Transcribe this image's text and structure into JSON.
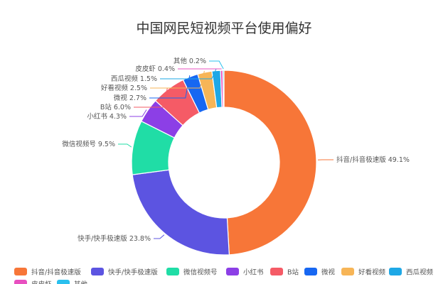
{
  "chart_data": {
    "type": "pie",
    "variant": "donut",
    "title": "中国网民短视频平台使用偏好",
    "slices": [
      {
        "name": "抖音/抖音极速版",
        "value": 49.1,
        "label": "抖音/抖音极速版 49.1%",
        "color": "#F77638"
      },
      {
        "name": "快手/快手极速版",
        "value": 23.8,
        "label": "快手/快手极速版 23.8%",
        "color": "#5C54E1"
      },
      {
        "name": "微信视频号",
        "value": 9.5,
        "label": "微信视频号 9.5%",
        "color": "#20DDA6"
      },
      {
        "name": "小红书",
        "value": 4.3,
        "label": "小红书 4.3%",
        "color": "#8C3FE6"
      },
      {
        "name": "B站",
        "value": 6.0,
        "label": "B站 6.0%",
        "color": "#F55B66"
      },
      {
        "name": "微视",
        "value": 2.7,
        "label": "微视 2.7%",
        "color": "#1767F2"
      },
      {
        "name": "好看视频",
        "value": 2.5,
        "label": "好看视频 2.5%",
        "color": "#F7B557"
      },
      {
        "name": "西瓜视频",
        "value": 1.5,
        "label": "西瓜视频 1.5%",
        "color": "#1EA8E6"
      },
      {
        "name": "皮皮虾",
        "value": 0.4,
        "label": "皮皮虾 0.4%",
        "color": "#E850C0"
      },
      {
        "name": "其他",
        "value": 0.2,
        "label": "其他 0.2%",
        "color": "#2BC0EE"
      }
    ],
    "legend_position": "bottom"
  }
}
